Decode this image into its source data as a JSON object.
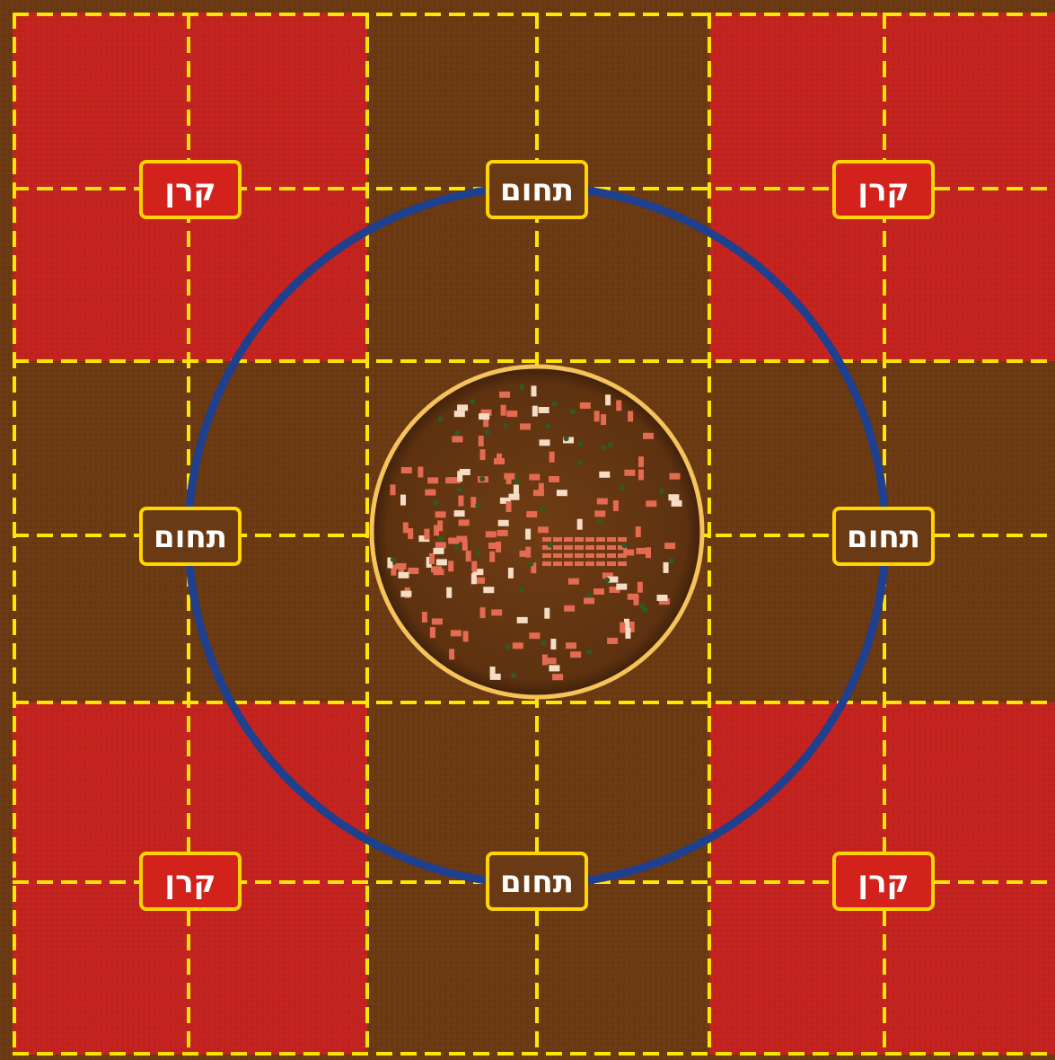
{
  "labels": {
    "corner": "קרן",
    "boundary": "תחום"
  },
  "colors": {
    "background": "#6b3a13",
    "corner_fill": "#c2231f",
    "grid_line": "#ffe600",
    "outer_circle": "#1f3f8f",
    "city_ring": "#f6c25a",
    "label_border": "#ffd400",
    "label_corner_bg": "#d3221c",
    "label_boundary_bg": "#6a3a14",
    "house_roof": "#e46a52",
    "house_body": "#f4ddc4",
    "tree": "#2d5a25"
  },
  "regions": [
    {
      "name": "corner-top-left",
      "type": "corner"
    },
    {
      "name": "boundary-top",
      "type": "boundary"
    },
    {
      "name": "corner-top-right",
      "type": "corner"
    },
    {
      "name": "boundary-left",
      "type": "boundary"
    },
    {
      "name": "city-center",
      "type": "city"
    },
    {
      "name": "boundary-right",
      "type": "boundary"
    },
    {
      "name": "corner-bottom-left",
      "type": "corner"
    },
    {
      "name": "boundary-bottom",
      "type": "boundary"
    },
    {
      "name": "corner-bottom-right",
      "type": "corner"
    }
  ]
}
